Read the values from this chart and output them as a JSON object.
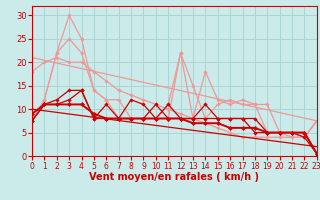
{
  "background_color": "#cbeaea",
  "grid_color": "#aad4d4",
  "xlabel": "Vent moyen/en rafales ( km/h )",
  "xlabel_color": "#cc0000",
  "xlabel_fontsize": 7,
  "tick_color": "#cc0000",
  "ytick_fontsize": 6,
  "xtick_fontsize": 5.5,
  "ylim": [
    0,
    32
  ],
  "xlim": [
    0,
    23
  ],
  "yticks": [
    0,
    5,
    10,
    15,
    20,
    25,
    30
  ],
  "xticks": [
    0,
    1,
    2,
    3,
    4,
    5,
    6,
    7,
    8,
    9,
    10,
    11,
    12,
    13,
    14,
    15,
    16,
    17,
    18,
    19,
    20,
    21,
    22,
    23
  ],
  "lines": [
    {
      "x": [
        0,
        1,
        2,
        3,
        4,
        5,
        6,
        7,
        8,
        9,
        10,
        11,
        12,
        13,
        14,
        15,
        16,
        17,
        18,
        19,
        20,
        21,
        22,
        23
      ],
      "y": [
        7.5,
        12,
        22,
        30,
        25,
        14,
        12,
        8,
        8,
        8,
        8,
        11,
        22,
        8,
        18,
        12,
        11,
        12,
        11,
        11,
        5,
        5,
        4,
        7.5
      ],
      "color": "#ee9999",
      "lw": 0.9,
      "marker": "D",
      "ms": 1.8
    },
    {
      "x": [
        0,
        1,
        2,
        3,
        4,
        5,
        6,
        7,
        8,
        9,
        10,
        11,
        12,
        13,
        14,
        15,
        16,
        17,
        18,
        19,
        20,
        21,
        22,
        23
      ],
      "y": [
        7.5,
        12,
        22,
        25,
        22,
        14,
        12,
        12,
        8,
        8,
        8,
        8,
        22,
        15,
        8,
        11,
        12,
        11,
        11,
        5,
        5,
        4,
        4,
        7.5
      ],
      "color": "#ee9999",
      "lw": 0.9,
      "marker": "D",
      "ms": 1.8
    },
    {
      "x": [
        0,
        1,
        2,
        3,
        4,
        5,
        6,
        7,
        8,
        9,
        10,
        11,
        12,
        13,
        14,
        15,
        16,
        17,
        18,
        19,
        20,
        21,
        22,
        23
      ],
      "y": [
        18,
        20,
        21,
        20,
        20,
        18,
        16,
        14,
        13,
        12,
        11,
        10,
        9,
        8,
        7,
        6,
        5,
        4,
        4,
        4,
        4,
        4,
        4,
        7.5
      ],
      "color": "#ee9999",
      "lw": 0.9,
      "marker": "D",
      "ms": 1.8
    },
    {
      "x": [
        0,
        23
      ],
      "y": [
        21,
        7.5
      ],
      "color": "#ee9999",
      "lw": 0.9,
      "marker": null,
      "ms": 0
    },
    {
      "x": [
        0,
        1,
        2,
        3,
        4,
        5,
        6,
        7,
        8,
        9,
        10,
        11,
        12,
        13,
        14,
        15,
        16,
        17,
        18,
        19,
        20,
        21,
        22,
        23
      ],
      "y": [
        7.5,
        11,
        12,
        14,
        14,
        8,
        11,
        8,
        12,
        11,
        8,
        11,
        8,
        8,
        11,
        8,
        8,
        8,
        8,
        5,
        5,
        5,
        4,
        0.5
      ],
      "color": "#cc0000",
      "lw": 0.9,
      "marker": "D",
      "ms": 1.8
    },
    {
      "x": [
        0,
        1,
        2,
        3,
        4,
        5,
        6,
        7,
        8,
        9,
        10,
        11,
        12,
        13,
        14,
        15,
        16,
        17,
        18,
        19,
        20,
        21,
        22,
        23
      ],
      "y": [
        7.5,
        11,
        11,
        12,
        14,
        8,
        8,
        8,
        8,
        8,
        11,
        8,
        8,
        8,
        8,
        8,
        8,
        8,
        5,
        5,
        5,
        5,
        5,
        0.5
      ],
      "color": "#cc0000",
      "lw": 0.9,
      "marker": "D",
      "ms": 1.8
    },
    {
      "x": [
        0,
        1,
        2,
        3,
        4,
        5,
        6,
        7,
        8,
        9,
        10,
        11,
        12,
        13,
        14,
        15,
        16,
        17,
        18,
        19,
        20,
        21,
        22,
        23
      ],
      "y": [
        9,
        11,
        11,
        11,
        11,
        9,
        8,
        8,
        8,
        8,
        8,
        8,
        8,
        7,
        7,
        7,
        6,
        6,
        6,
        5,
        5,
        5,
        5,
        0.5
      ],
      "color": "#cc0000",
      "lw": 1.4,
      "marker": "D",
      "ms": 2.2
    },
    {
      "x": [
        0,
        23
      ],
      "y": [
        10,
        2
      ],
      "color": "#cc0000",
      "lw": 0.9,
      "marker": null,
      "ms": 0
    }
  ]
}
